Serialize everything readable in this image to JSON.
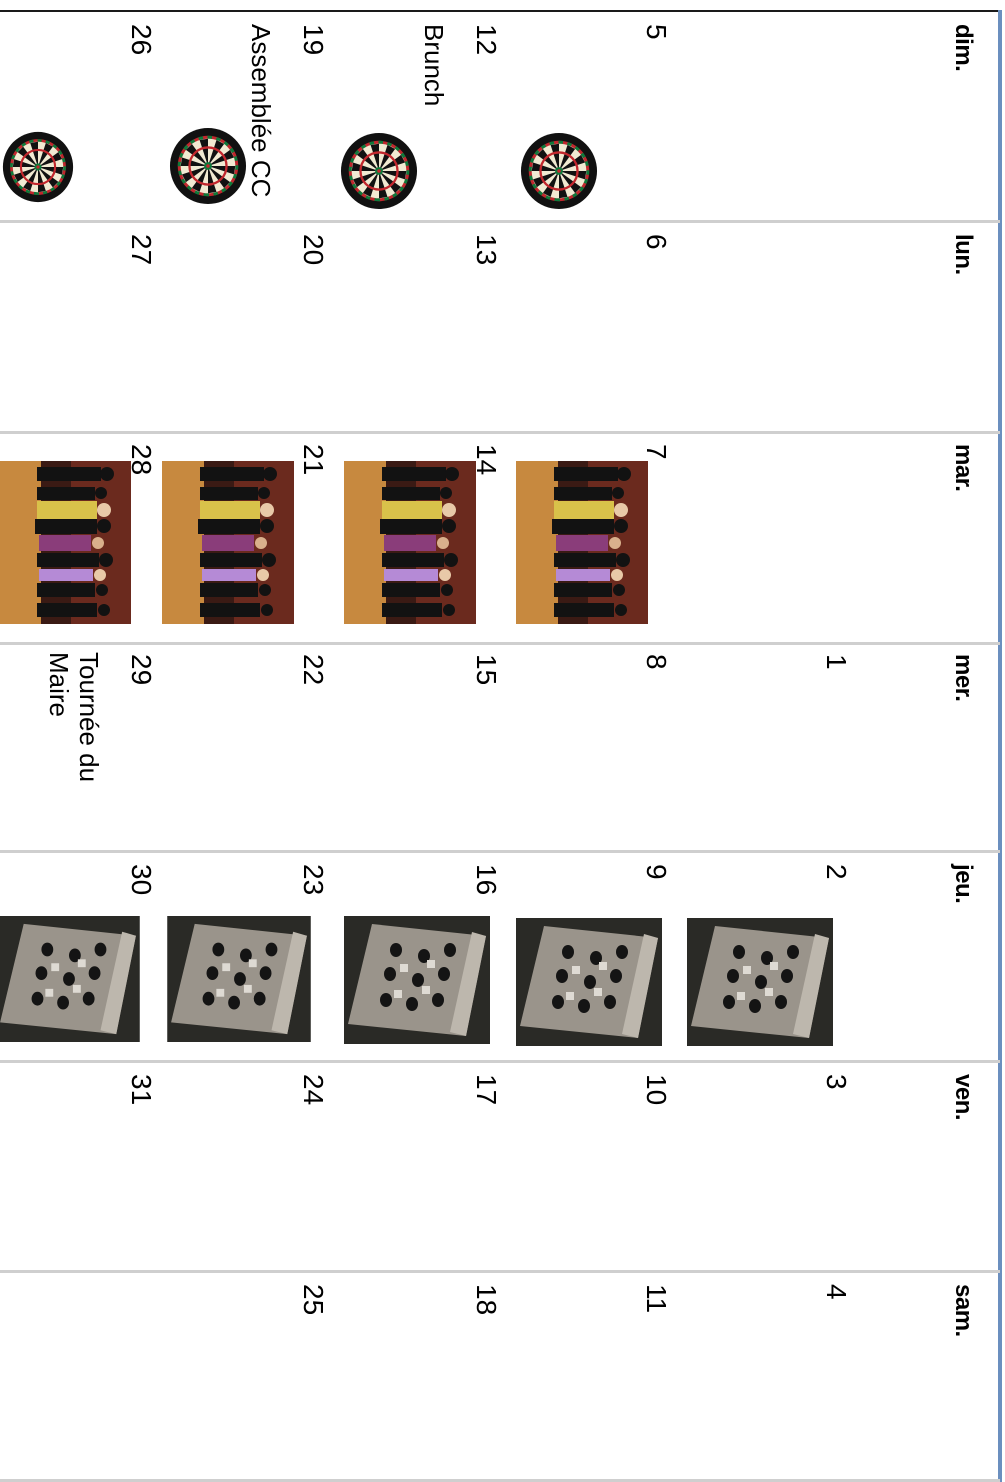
{
  "calendar": {
    "weekdays": [
      "dim.",
      "lun.",
      "mar.",
      "mer.",
      "jeu.",
      "ven.",
      "sam."
    ],
    "weeks": [
      [
        "",
        "",
        "",
        "1",
        "2",
        "3",
        "4"
      ],
      [
        "5",
        "6",
        "7",
        "8",
        "9",
        "10",
        "11"
      ],
      [
        "12",
        "13",
        "14",
        "15",
        "16",
        "17",
        "18"
      ],
      [
        "19",
        "20",
        "21",
        "22",
        "23",
        "24",
        "25"
      ],
      [
        "26",
        "27",
        "28",
        "29",
        "30",
        "31",
        ""
      ]
    ],
    "events": {
      "brunch": "Brunch",
      "assemblee": "Assemblée CC",
      "tournee": "Tournée du\nMaire"
    },
    "icons": {
      "sunday": "dartboard-icon",
      "tuesday": "dance-photo",
      "thursday": "cornhole-board-photo"
    }
  }
}
